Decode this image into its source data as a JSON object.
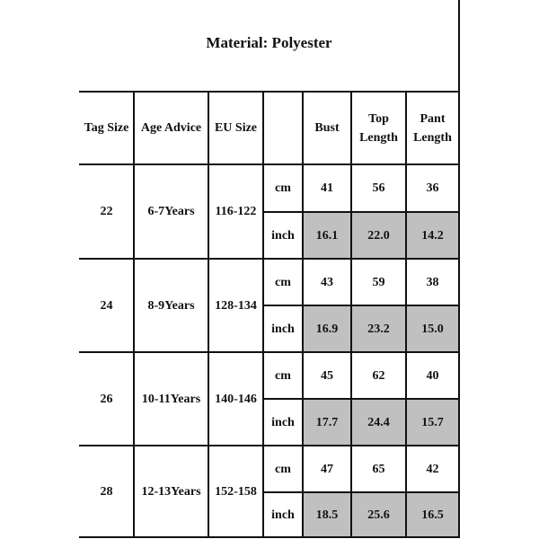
{
  "title": "Material: Polyester",
  "headers": [
    "Tag Size",
    "Age Advice",
    "EU Size",
    "",
    "Bust",
    "Top\nLength",
    "Pant\nLength"
  ],
  "rows": [
    {
      "tag": "22",
      "age": "6-7Years",
      "eu": "116-122",
      "cm": [
        "41",
        "56",
        "36"
      ],
      "inch": [
        "16.1",
        "22.0",
        "14.2"
      ]
    },
    {
      "tag": "24",
      "age": "8-9Years",
      "eu": "128-134",
      "cm": [
        "43",
        "59",
        "38"
      ],
      "inch": [
        "16.9",
        "23.2",
        "15.0"
      ]
    },
    {
      "tag": "26",
      "age": "10-11Years",
      "eu": "140-146",
      "cm": [
        "45",
        "62",
        "40"
      ],
      "inch": [
        "17.7",
        "24.4",
        "15.7"
      ]
    },
    {
      "tag": "28",
      "age": "12-13Years",
      "eu": "152-158",
      "cm": [
        "47",
        "65",
        "42"
      ],
      "inch": [
        "18.5",
        "25.6",
        "16.5"
      ]
    }
  ],
  "units": {
    "cm": "cm",
    "inch": "inch"
  },
  "colors": {
    "highlight": "#c0c0c0",
    "lines": "#111111"
  }
}
